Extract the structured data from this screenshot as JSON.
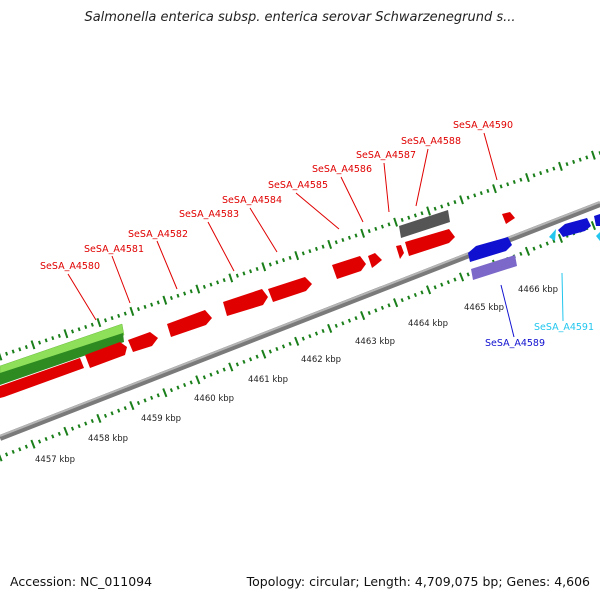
{
  "title": "Salmonella enterica subsp. enterica serovar Schwarzenegrund s...",
  "footer": {
    "accession": "Accession: NC_011094",
    "summary": "Topology: circular; Length: 4,709,075 bp; Genes: 4,606"
  },
  "colors": {
    "forward_gene": "#e00000",
    "reverse_gene": "#1010d0",
    "rna_gene": "#7b68c8",
    "pseudo_gene": "#555555",
    "other_gene": "#22c6ee",
    "gc_light": "#8ee05a",
    "gc_dark": "#2e8b22",
    "tick": "#1a7f1a",
    "backbone": "#909090"
  },
  "scale_labels": [
    "4457 kbp",
    "4458 kbp",
    "4459 kbp",
    "4460 kbp",
    "4461 kbp",
    "4462 kbp",
    "4463 kbp",
    "4464 kbp",
    "4465 kbp",
    "4466 kbp"
  ],
  "gene_labels": [
    {
      "text": "SeSA_A4580",
      "color": "#e00000"
    },
    {
      "text": "SeSA_A4581",
      "color": "#e00000"
    },
    {
      "text": "SeSA_A4582",
      "color": "#e00000"
    },
    {
      "text": "SeSA_A4583",
      "color": "#e00000"
    },
    {
      "text": "SeSA_A4584",
      "color": "#e00000"
    },
    {
      "text": "SeSA_A4585",
      "color": "#e00000"
    },
    {
      "text": "SeSA_A4586",
      "color": "#e00000"
    },
    {
      "text": "SeSA_A4587",
      "color": "#e00000"
    },
    {
      "text": "SeSA_A4588",
      "color": "#e00000"
    },
    {
      "text": "SeSA_A4590",
      "color": "#e00000"
    },
    {
      "text": "SeSA_A4589",
      "color": "#1010d0"
    },
    {
      "text": "SeSA_A4591",
      "color": "#22c6ee"
    }
  ]
}
